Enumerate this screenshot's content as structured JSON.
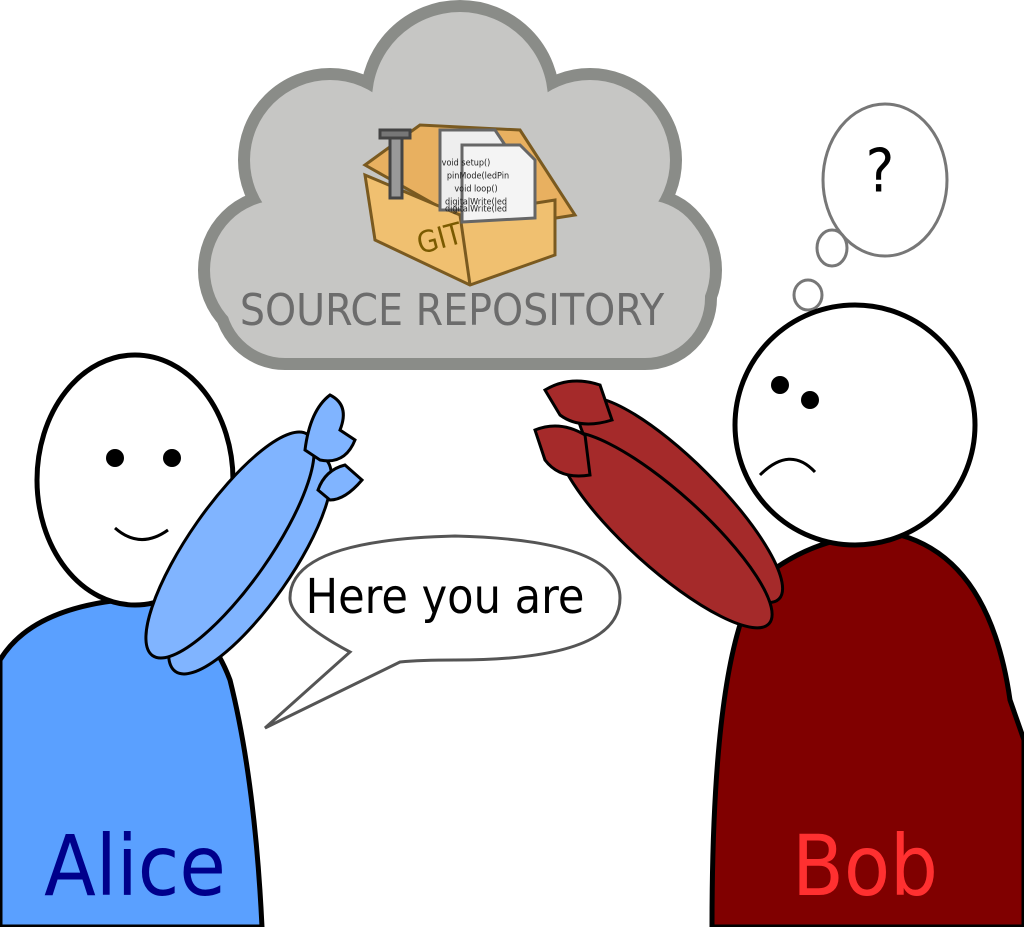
{
  "cloud": {
    "label": "SOURCE REPOSITORY",
    "box_label": "GIT",
    "code_lines": [
      "void setup()",
      "pinMode(ledPin",
      "void loop()",
      "digitalWrite(led",
      "digitalWrite(led"
    ]
  },
  "speech_bubble": {
    "text": "Here you are"
  },
  "thought_bubble": {
    "text": "?"
  },
  "people": [
    {
      "name": "Alice"
    },
    {
      "name": "Bob"
    }
  ]
}
